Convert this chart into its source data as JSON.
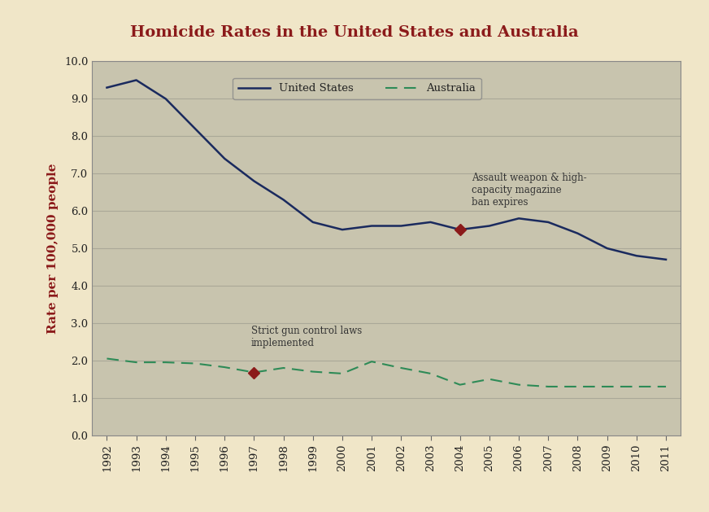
{
  "title": "Homicide Rates in the United States and Australia",
  "ylabel": "Rate per 100,000 people",
  "years": [
    1992,
    1993,
    1994,
    1995,
    1996,
    1997,
    1998,
    1999,
    2000,
    2001,
    2002,
    2003,
    2004,
    2005,
    2006,
    2007,
    2008,
    2009,
    2010,
    2011
  ],
  "us_data": [
    9.3,
    9.5,
    9.0,
    8.2,
    7.4,
    6.8,
    6.3,
    5.7,
    5.5,
    5.6,
    5.6,
    5.7,
    5.5,
    5.6,
    5.8,
    5.7,
    5.4,
    5.0,
    4.8,
    4.7
  ],
  "aus_data": [
    2.05,
    1.95,
    1.95,
    1.92,
    1.82,
    1.68,
    1.8,
    1.7,
    1.65,
    1.97,
    1.8,
    1.65,
    1.35,
    1.5,
    1.35,
    1.3,
    1.3,
    1.3,
    1.3,
    1.3
  ],
  "us_color": "#1a2a5e",
  "aus_color": "#2e8b57",
  "title_color": "#8b1a1a",
  "ylabel_color": "#8b1a1a",
  "bg_color": "#c8c4ae",
  "outer_bg": "#f0e6c8",
  "annotation1_year": 1997,
  "annotation1_value": 1.68,
  "annotation1_text": "Strict gun control laws\nimplemented",
  "annotation2_year": 2004,
  "annotation2_value": 5.5,
  "annotation2_text": "Assault weapon & high-\ncapacity magazine\nban expires",
  "marker_color": "#8b1a1a",
  "ylim": [
    0.0,
    10.0
  ],
  "yticks": [
    0.0,
    1.0,
    2.0,
    3.0,
    4.0,
    5.0,
    6.0,
    7.0,
    8.0,
    9.0,
    10.0
  ],
  "grid_color": "#aaa898",
  "legend_us": "United States",
  "legend_aus": "Australia"
}
